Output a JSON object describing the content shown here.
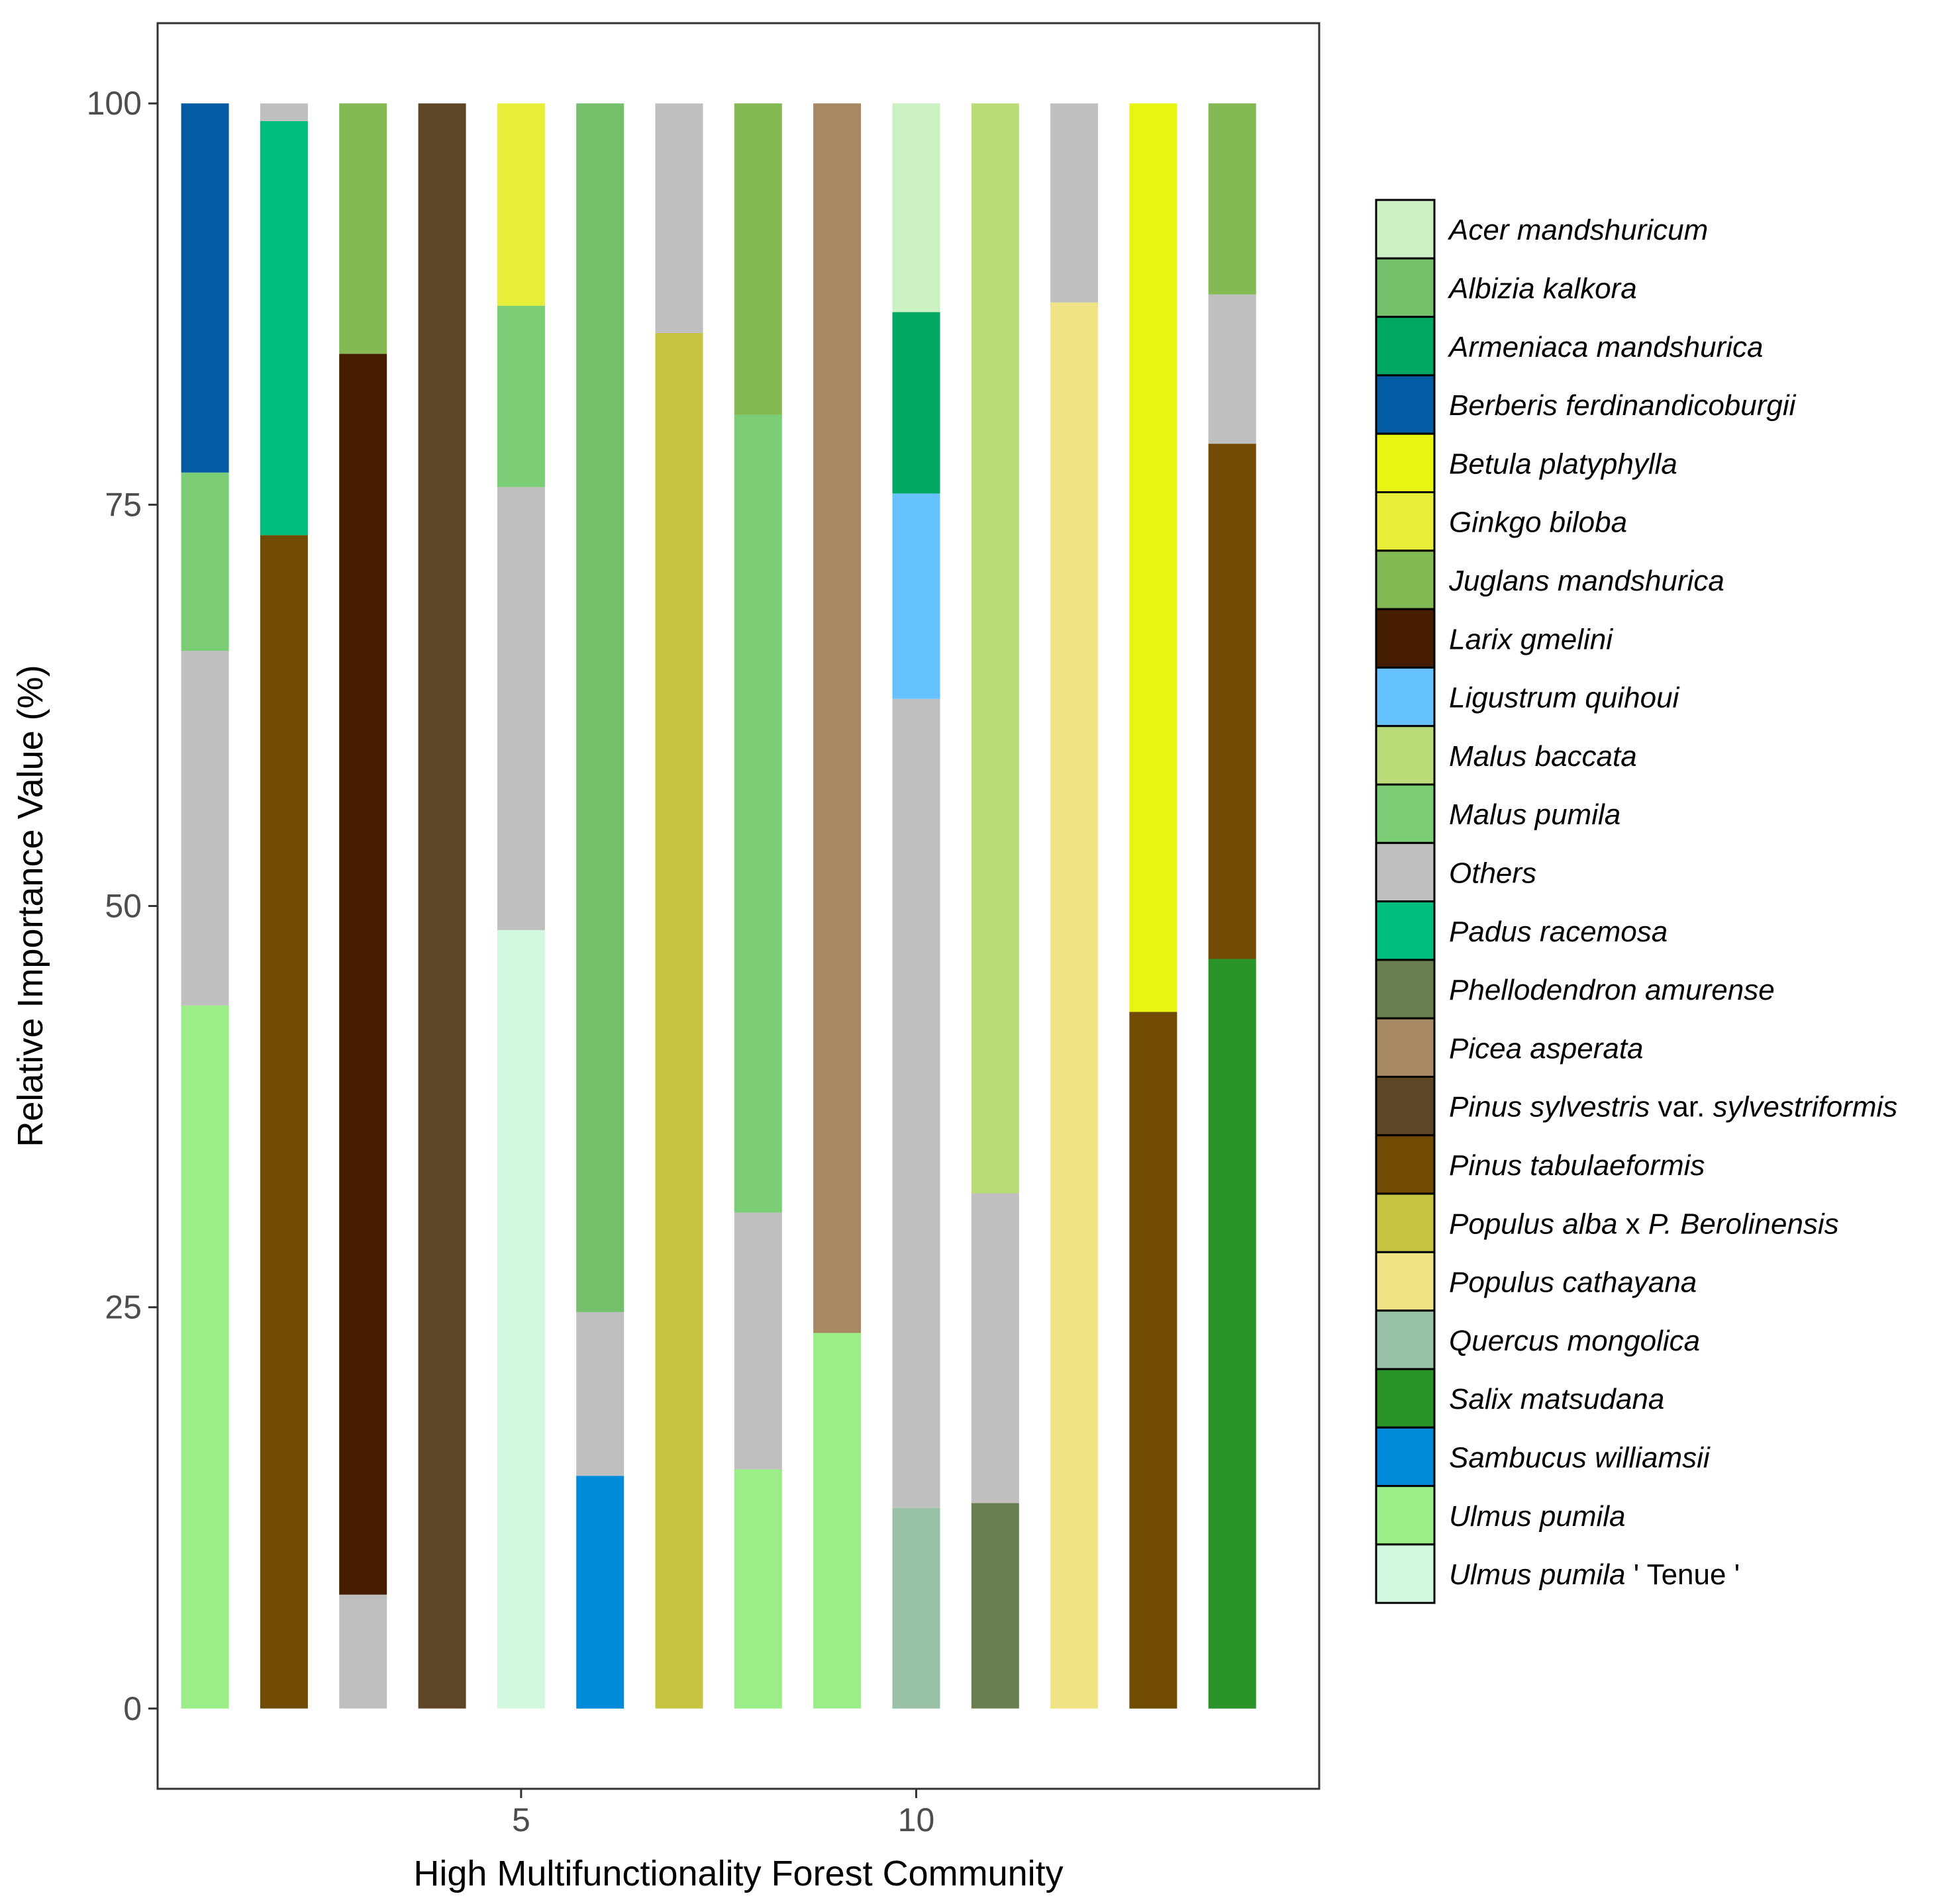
{
  "chart_data": {
    "type": "stacked_bar",
    "xlabel": "High Multifunctionality Forest Community",
    "ylabel": "Relative Importance Value (%)",
    "ylim": [
      -5,
      105
    ],
    "xlim": [
      0.4,
      15.1
    ],
    "yticks": [
      0,
      25,
      50,
      75,
      100
    ],
    "xticks": [
      5,
      10
    ],
    "categories": [
      1,
      2,
      3,
      4,
      5,
      6,
      7,
      8,
      9,
      10,
      11,
      12,
      13,
      14
    ],
    "legend_position": "right",
    "species": [
      {
        "name": "Acer mandshuricum",
        "color": "#cbf1c2"
      },
      {
        "name": "Albizia kalkora",
        "color": "#73bf6a"
      },
      {
        "name": "Armeniaca mandshurica",
        "color": "#00a862"
      },
      {
        "name": "Berberis ferdinandicoburgii",
        "color": "#035ca3"
      },
      {
        "name": "Betula platyphylla",
        "color": "#e8f513"
      },
      {
        "name": "Ginkgo biloba",
        "color": "#e6ee37"
      },
      {
        "name": "Juglans mandshurica",
        "color": "#83ba53"
      },
      {
        "name": "Larix gmelini",
        "color": "#461d00"
      },
      {
        "name": "Ligustrum quihoui",
        "color": "#66c1ff"
      },
      {
        "name": "Malus baccata",
        "color": "#badc78"
      },
      {
        "name": "Malus pumila",
        "color": "#7bce76"
      },
      {
        "name": "Others",
        "color": "#bfbfbf"
      },
      {
        "name": "Padus racemosa",
        "color": "#00bf7c"
      },
      {
        "name": "Phellodendron amurense",
        "color": "#677f4e"
      },
      {
        "name": "Picea asperata",
        "color": "#a68962"
      },
      {
        "name": "Pinus sylvestris var. sylvestriformis",
        "italic_a": "Pinus sylvestris",
        "plain": "var.",
        "italic_b": "sylvestriformis",
        "color": "#5e4525"
      },
      {
        "name": "Pinus tabulaeformis",
        "color": "#714b03"
      },
      {
        "name": "Populus alba x P. Berolinensis",
        "italic_a": "Populus alba",
        "plain": "x",
        "italic_b": "P. Berolinensis",
        "color": "#c5c441"
      },
      {
        "name": "Populus cathayana",
        "color": "#f0e385"
      },
      {
        "name": "Quercus mongolica",
        "color": "#98c1a7"
      },
      {
        "name": "Salix matsudana",
        "color": "#2a9428"
      },
      {
        "name": "Sambucus williamsii",
        "color": "#008ad7"
      },
      {
        "name": "Ulmus pumila",
        "color": "#9aed87"
      },
      {
        "name": "Ulmus pumila ' Tenue '",
        "italic_a": "Ulmus pumila",
        "plain": "' Tenue '",
        "italic_b": "",
        "color": "#d2f9e0"
      }
    ],
    "series": [
      {
        "community": 1,
        "segments": [
          {
            "species": "Ulmus pumila",
            "value": 43.8
          },
          {
            "species": "Others",
            "value": 22.1
          },
          {
            "species": "Malus pumila",
            "value": 11.1
          },
          {
            "species": "Berberis ferdinandicoburgii",
            "value": 23.0
          }
        ]
      },
      {
        "community": 2,
        "segments": [
          {
            "species": "Pinus tabulaeformis",
            "value": 73.1
          },
          {
            "species": "Padus racemosa",
            "value": 25.8
          },
          {
            "species": "Others",
            "value": 1.1
          }
        ]
      },
      {
        "community": 3,
        "segments": [
          {
            "species": "Others",
            "value": 7.1
          },
          {
            "species": "Larix gmelini",
            "value": 77.3
          },
          {
            "species": "Juglans mandshurica",
            "value": 15.6
          }
        ]
      },
      {
        "community": 4,
        "segments": [
          {
            "species": "Pinus sylvestris var. sylvestriformis",
            "value": 100.0
          }
        ]
      },
      {
        "community": 5,
        "segments": [
          {
            "species": "Ulmus pumila ' Tenue '",
            "value": 48.5
          },
          {
            "species": "Others",
            "value": 27.6
          },
          {
            "species": "Malus pumila",
            "value": 11.3
          },
          {
            "species": "Ginkgo biloba",
            "value": 12.6
          }
        ]
      },
      {
        "community": 6,
        "segments": [
          {
            "species": "Sambucus williamsii",
            "value": 14.5
          },
          {
            "species": "Others",
            "value": 10.2
          },
          {
            "species": "Albizia kalkora",
            "value": 75.3
          }
        ]
      },
      {
        "community": 7,
        "segments": [
          {
            "species": "Populus alba x P. Berolinensis",
            "value": 85.7
          },
          {
            "species": "Others",
            "value": 14.3
          }
        ]
      },
      {
        "community": 8,
        "segments": [
          {
            "species": "Ulmus pumila",
            "value": 14.9
          },
          {
            "species": "Others",
            "value": 16.0
          },
          {
            "species": "Malus pumila",
            "value": 49.7
          },
          {
            "species": "Juglans mandshurica",
            "value": 19.4
          }
        ]
      },
      {
        "community": 9,
        "segments": [
          {
            "species": "Ulmus pumila",
            "value": 23.4
          },
          {
            "species": "Picea asperata",
            "value": 76.6
          }
        ]
      },
      {
        "community": 10,
        "segments": [
          {
            "species": "Quercus mongolica",
            "value": 12.5
          },
          {
            "species": "Others",
            "value": 50.4
          },
          {
            "species": "Ligustrum quihoui",
            "value": 12.8
          },
          {
            "species": "Armeniaca mandshurica",
            "value": 11.3
          },
          {
            "species": "Acer mandshuricum",
            "value": 13.0
          }
        ]
      },
      {
        "community": 11,
        "segments": [
          {
            "species": "Phellodendron amurense",
            "value": 12.8
          },
          {
            "species": "Others",
            "value": 19.3
          },
          {
            "species": "Malus baccata",
            "value": 67.9
          }
        ]
      },
      {
        "community": 12,
        "segments": [
          {
            "species": "Populus cathayana",
            "value": 87.6
          },
          {
            "species": "Others",
            "value": 12.4
          }
        ]
      },
      {
        "community": 13,
        "segments": [
          {
            "species": "Pinus tabulaeformis",
            "value": 43.4
          },
          {
            "species": "Betula platyphylla",
            "value": 56.6
          }
        ]
      },
      {
        "community": 14,
        "segments": [
          {
            "species": "Salix matsudana",
            "value": 46.7
          },
          {
            "species": "Pinus tabulaeformis",
            "value": 32.1
          },
          {
            "species": "Others",
            "value": 9.3
          },
          {
            "species": "Juglans mandshurica",
            "value": 11.9
          }
        ]
      }
    ]
  }
}
